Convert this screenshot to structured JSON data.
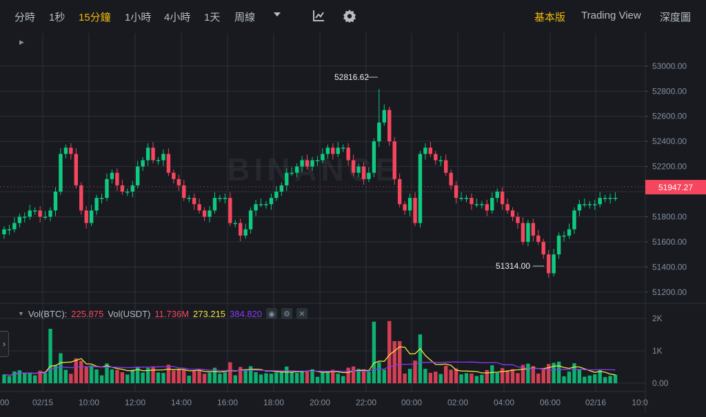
{
  "toolbar": {
    "intervals": [
      "分時",
      "1秒",
      "15分鐘",
      "1小時",
      "4小時",
      "1天",
      "周線"
    ],
    "active_interval": "15分鐘",
    "views": [
      "基本版",
      "Trading View",
      "深度圖"
    ],
    "active_view": "基本版"
  },
  "watermark": "BINANCE",
  "price_axis": {
    "ticks": [
      "53000.00",
      "52800.00",
      "52600.00",
      "52400.00",
      "52200.00",
      "52000.00",
      "51800.00",
      "51600.00",
      "51400.00",
      "51200.00"
    ],
    "current_price": "51947.27"
  },
  "annotations": {
    "high": "52816.62",
    "low": "51314.00"
  },
  "volume": {
    "label_btc": "Vol(BTC):",
    "value_btc": "225.875",
    "label_usdt": "Vol(USDT)",
    "value_usdt": "11.736M",
    "ma_short": "273.215",
    "ma_long": "384.820",
    "axis_ticks": [
      "2K",
      "1K",
      "0.00"
    ]
  },
  "time_axis": [
    "00",
    "02/15",
    "10:00",
    "12:00",
    "14:00",
    "16:00",
    "18:00",
    "20:00",
    "22:00",
    "00:00",
    "02:00",
    "04:00",
    "06:00",
    "02/16",
    "10:0"
  ],
  "colors": {
    "up": "#0ecb81",
    "down": "#f6465d",
    "accent": "#f0b90b",
    "ma_short": "#f0e442",
    "ma_long": "#8c38f5"
  },
  "chart_data": {
    "type": "candlestick",
    "interval": "15m",
    "price_range": [
      51150,
      53050
    ],
    "close": [
      51700,
      51700,
      51750,
      51800,
      51800,
      51850,
      51850,
      51800,
      51800,
      51850,
      52000,
      52300,
      52350,
      52300,
      52050,
      51850,
      51750,
      51850,
      51950,
      51950,
      52100,
      52150,
      52050,
      52000,
      52000,
      52050,
      52200,
      52250,
      52350,
      52250,
      52250,
      52300,
      52150,
      52100,
      52050,
      51950,
      51950,
      51900,
      51850,
      51800,
      51850,
      51950,
      51950,
      51950,
      51750,
      51750,
      51650,
      51700,
      51850,
      51900,
      51900,
      51900,
      51950,
      52000,
      52050,
      52150,
      52150,
      52200,
      52250,
      52200,
      52250,
      52250,
      52300,
      52350,
      52300,
      52350,
      52350,
      52250,
      52150,
      52200,
      52100,
      52150,
      52400,
      52550,
      52650,
      52400,
      52100,
      51900,
      51850,
      51950,
      51750,
      52300,
      52350,
      52300,
      52250,
      52250,
      52150,
      52050,
      51950,
      51950,
      51950,
      51900,
      51900,
      51900,
      51850,
      51950,
      52000,
      51900,
      51850,
      51800,
      51750,
      51600,
      51750,
      51650,
      51600,
      51500,
      51350,
      51500,
      51650,
      51650,
      51700,
      51850,
      51900,
      51900,
      51900,
      51900,
      51950,
      51950,
      51950,
      51950
    ]
  }
}
